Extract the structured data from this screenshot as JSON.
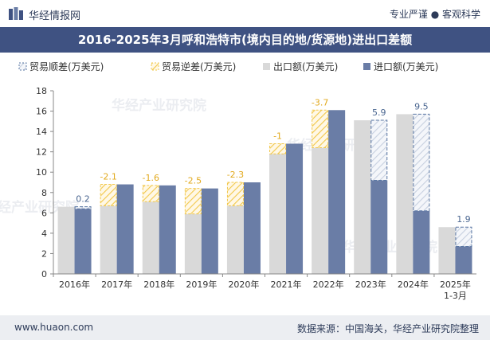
{
  "header": {
    "brand": "华经情报网",
    "tagline": "专业严谨 ● 客观科学",
    "title": "2016-2025年3月呼和浩特市(境内目的地/货源地)进出口差额"
  },
  "footer": {
    "website": "www.huaon.com",
    "source": "数据来源：中国海关，华经产业研究院整理"
  },
  "watermark": "华经产业研究院",
  "colors": {
    "title_bg": "#3f5282",
    "export": "#d9d9d9",
    "import": "#6a7da6",
    "surplus": "#5a77a3",
    "deficit": "#f2c84b",
    "footer_bg": "#eceef2"
  },
  "chart_data": {
    "type": "bar",
    "title": "2016-2025年3月呼和浩特市(境内目的地/货源地)进出口差额",
    "categories": [
      "2016年",
      "2017年",
      "2018年",
      "2019年",
      "2020年",
      "2021年",
      "2022年",
      "2023年",
      "2024年",
      "2025年\n1-3月"
    ],
    "series": [
      {
        "name": "出口额(万美元)",
        "key": "export",
        "values": [
          6.6,
          6.7,
          7.1,
          5.9,
          6.7,
          11.8,
          12.4,
          15.1,
          15.7,
          4.6
        ]
      },
      {
        "name": "进口额(万美元)",
        "key": "import",
        "values": [
          6.4,
          8.8,
          8.7,
          8.4,
          9.0,
          12.8,
          16.1,
          9.2,
          6.2,
          2.7
        ]
      }
    ],
    "balance_labels": [
      "0.2",
      "-2.1",
      "-1.6",
      "-2.5",
      "-2.3",
      "-1",
      "-3.7",
      "5.9",
      "9.5",
      "1.9"
    ],
    "legend": [
      {
        "name": "贸易顺差(万美元)",
        "key": "surplus"
      },
      {
        "name": "贸易逆差(万美元)",
        "key": "deficit"
      },
      {
        "name": "出口额(万美元)",
        "key": "export"
      },
      {
        "name": "进口额(万美元)",
        "key": "import"
      }
    ],
    "ylim": [
      0,
      18
    ],
    "yticks": [
      0,
      2,
      4,
      6,
      8,
      10,
      12,
      14,
      16,
      18
    ],
    "xlabel": "",
    "ylabel": "",
    "grid": false,
    "legend_position": "top-left"
  }
}
